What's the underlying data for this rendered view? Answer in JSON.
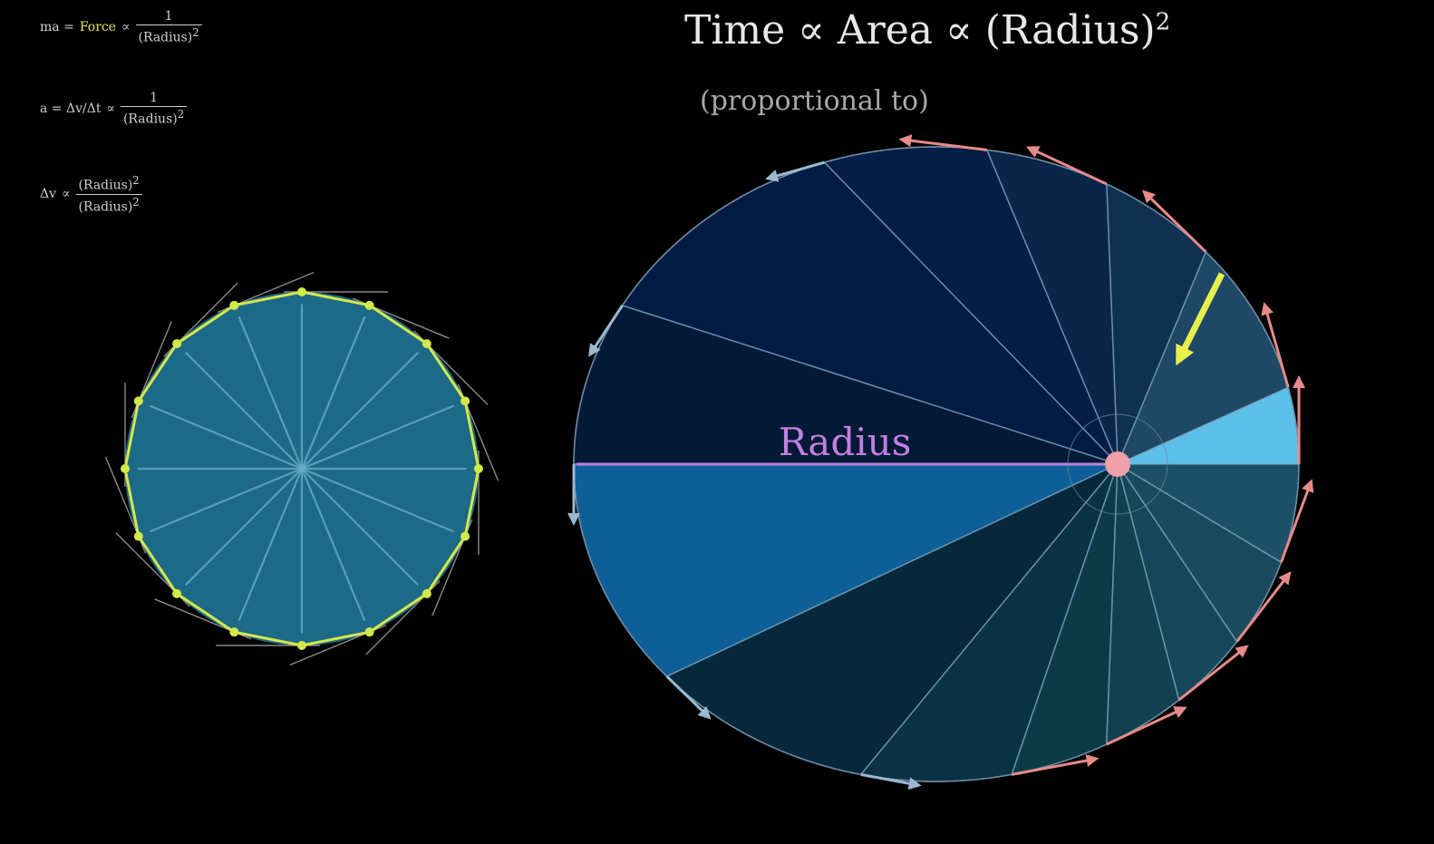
{
  "title": {
    "text": "Time ∝ Area ∝ (Radius)",
    "exponent": "2",
    "annotation": "(proportional to)"
  },
  "equations": [
    {
      "lhs": "ma =",
      "highlight": "Force",
      "rel": "∝",
      "num": "1",
      "den": "(Radius)",
      "den_exp": "2"
    },
    {
      "lhs": "a = Δv/Δt",
      "highlight": "",
      "rel": "∝",
      "num": "1",
      "den": "(Radius)",
      "den_exp": "2"
    },
    {
      "lhs": "Δv",
      "highlight": "",
      "rel": "∝",
      "num": "(Radius)",
      "num_exp": "2",
      "den": "(Radius)",
      "den_exp": "2"
    }
  ],
  "ellipse_label": "Radius",
  "colors": {
    "background": "#000000",
    "circle_fill": "#1d6a88",
    "polygon_stroke": "#d4e84a",
    "force_arrow": "#e8f04a",
    "velocity_arrow": "#e88a8a",
    "radius_line": "#c080e0",
    "highlight_sector": "#5cc0e8",
    "large_sector": "#0e5f97"
  },
  "icons": [
    "force-arrow-icon",
    "velocity-arrow-icon",
    "focus-point-icon"
  ]
}
